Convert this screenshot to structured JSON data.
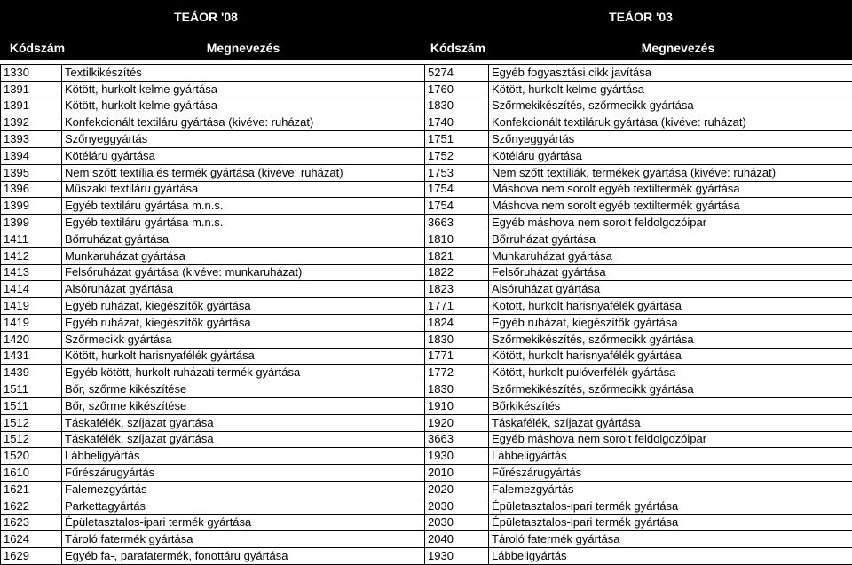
{
  "headers": {
    "group_left": "TEÁOR '08",
    "group_right": "TEÁOR '03",
    "code_left": "Kódszám",
    "name_left": "Megnevezés",
    "code_right": "Kódszám",
    "name_right": "Megnevezés"
  },
  "rows": [
    [
      "1330",
      "Textilkikészítés",
      "5274",
      "Egyéb fogyasztási cikk javítása"
    ],
    [
      "1391",
      "Kötött, hurkolt kelme gyártása",
      "1760",
      "Kötött, hurkolt kelme gyártása"
    ],
    [
      "1391",
      "Kötött, hurkolt kelme gyártása",
      "1830",
      "Szőrmekikészítés, szőrmecikk gyártása"
    ],
    [
      "1392",
      "Konfekcionált textiláru gyártása (kivéve: ruházat)",
      "1740",
      "Konfekcionált textiláruk gyártása (kivéve: ruházat)"
    ],
    [
      "1393",
      "Szőnyeggyártás",
      "1751",
      "Szőnyeggyártás"
    ],
    [
      "1394",
      "Kötéláru gyártása",
      "1752",
      "Kötéláru gyártása"
    ],
    [
      "1395",
      "Nem szőtt textília és termék gyártása (kivéve: ruházat)",
      "1753",
      "Nem szőtt textíliák, termékek gyártása (kivéve: ruházat)"
    ],
    [
      "1396",
      "Műszaki textiláru gyártása",
      "1754",
      "Máshova nem sorolt egyéb textiltermék gyártása"
    ],
    [
      "1399",
      "Egyéb textiláru gyártása m.n.s.",
      "1754",
      "Máshova nem sorolt egyéb textiltermék gyártása"
    ],
    [
      "1399",
      "Egyéb textiláru gyártása m.n.s.",
      "3663",
      "Egyéb máshova nem sorolt  feldolgozóipar"
    ],
    [
      "1411",
      "Bőrruházat gyártása",
      "1810",
      "Bőrruházat gyártása"
    ],
    [
      "1412",
      "Munkaruházat gyártása",
      "1821",
      "Munkaruházat gyártása"
    ],
    [
      "1413",
      "Felsőruházat gyártása (kivéve: munkaruházat)",
      "1822",
      "Felsőruházat gyártása"
    ],
    [
      "1414",
      "Alsóruházat gyártása",
      "1823",
      "Alsóruházat gyártása"
    ],
    [
      "1419",
      "Egyéb ruházat, kiegészítők gyártása",
      "1771",
      "Kötött, hurkolt harisnyafélék gyártása"
    ],
    [
      "1419",
      "Egyéb ruházat, kiegészítők gyártása",
      "1824",
      "Egyéb ruházat, kiegészítők gyártása"
    ],
    [
      "1420",
      "Szőrmecikk gyártása",
      "1830",
      "Szőrmekikészítés, szőrmecikk gyártása"
    ],
    [
      "1431",
      "Kötött, hurkolt harisnyafélék gyártása",
      "1771",
      "Kötött, hurkolt harisnyafélék gyártása"
    ],
    [
      "1439",
      "Egyéb kötött, hurkolt ruházati termék gyártása",
      "1772",
      "Kötött, hurkolt pulóverfélék gyártása"
    ],
    [
      "1511",
      "Bőr, szőrme kikészítése",
      "1830",
      "Szőrmekikészítés, szőrmecikk gyártása"
    ],
    [
      "1511",
      "Bőr, szőrme kikészítése",
      "1910",
      "Bőrkikészítés"
    ],
    [
      "1512",
      "Táskafélék, szíjazat gyártása",
      "1920",
      "Táskafélék, szíjazat gyártása"
    ],
    [
      "1512",
      "Táskafélék, szíjazat gyártása",
      "3663",
      "Egyéb máshova nem sorolt  feldolgozóipar"
    ],
    [
      "1520",
      "Lábbeligyártás",
      "1930",
      "Lábbeligyártás"
    ],
    [
      "1610",
      "Fűrészárugyártás",
      "2010",
      "Fűrészárugyártás"
    ],
    [
      "1621",
      "Falemezgyártás",
      "2020",
      "Falemezgyártás"
    ],
    [
      "1622",
      "Parkettagyártás",
      "2030",
      "Épületasztalos-ipari termék gyártása"
    ],
    [
      "1623",
      "Épületasztalos-ipari termék gyártása",
      "2030",
      "Épületasztalos-ipari termék gyártása"
    ],
    [
      "1624",
      "Tároló fatermék gyártása",
      "2040",
      "Tároló fatermék gyártása"
    ],
    [
      "1629",
      "Egyéb fa-, parafatermék, fonottáru gyártása",
      "1930",
      "Lábbeligyártás"
    ]
  ]
}
